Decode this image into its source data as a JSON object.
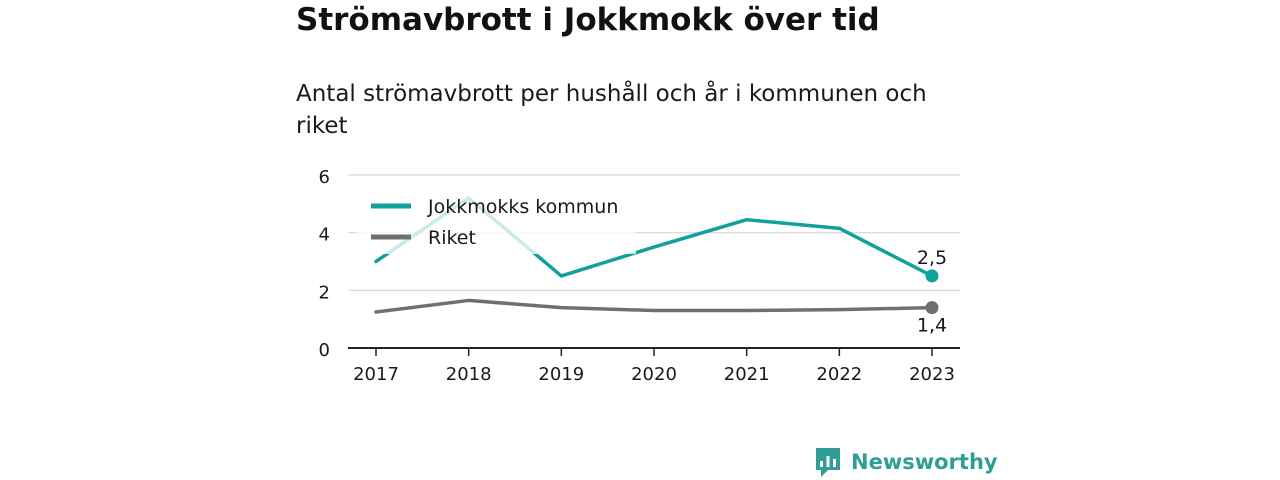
{
  "title": "Strömavbrott i Jokkmokk över tid",
  "subtitle": "Antal strömavbrott per hushåll och år i kommunen och riket",
  "brand": {
    "name": "Newsworthy",
    "icon": "newsworthy-logo-icon"
  },
  "colors": {
    "kommun": "#0fa19a",
    "riket": "#6f6e74",
    "grid": "#d6d6d6",
    "axis": "#222222",
    "brand": "#2f9e96"
  },
  "chart_data": {
    "type": "line",
    "title": "Strömavbrott i Jokkmokk över tid",
    "subtitle": "Antal strömavbrott per hushåll och år i kommunen och riket",
    "xlabel": "",
    "ylabel": "",
    "x": [
      "2017",
      "2018",
      "2019",
      "2020",
      "2021",
      "2022",
      "2023"
    ],
    "ylim": [
      0,
      6
    ],
    "yticks": [
      "0",
      "2",
      "4",
      "6"
    ],
    "grid": true,
    "legend_position": "top-left",
    "series": [
      {
        "name": "Jokkmokks kommun",
        "values": [
          3.0,
          5.2,
          2.5,
          3.5,
          4.45,
          4.15,
          2.5
        ],
        "end_label": "2,5"
      },
      {
        "name": "Riket",
        "values": [
          1.25,
          1.65,
          1.4,
          1.3,
          1.3,
          1.33,
          1.4
        ],
        "end_label": "1,4"
      }
    ]
  }
}
